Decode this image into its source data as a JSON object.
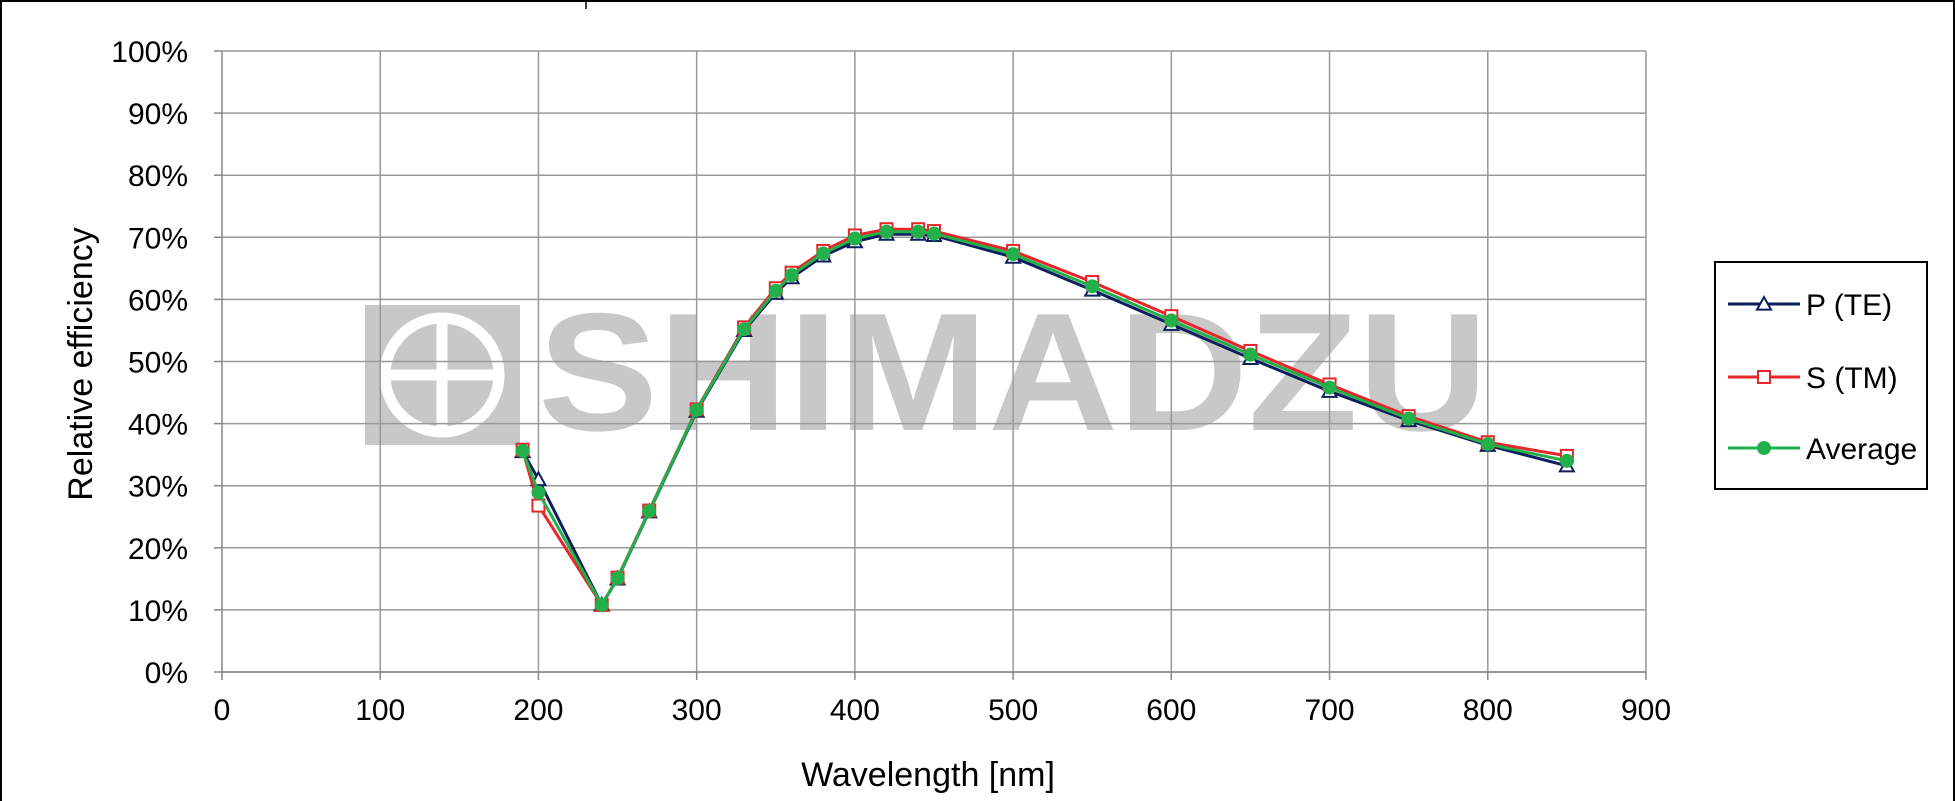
{
  "watermark": {
    "text": "SHIMADZU",
    "logo": "shimadzu-logo"
  },
  "colors": {
    "p_te": "#0d1f5c",
    "s_tm": "#e5262a",
    "average": "#22b04b",
    "grid": "#999999",
    "watermark": "#c8c8c8"
  },
  "chart_data": {
    "type": "line",
    "xlabel": "Wavelength [nm]",
    "ylabel": "Relative efficiency",
    "xlim": [
      0,
      900
    ],
    "ylim": [
      0,
      100
    ],
    "x_ticks": [
      "0",
      "100",
      "200",
      "300",
      "400",
      "500",
      "600",
      "700",
      "800",
      "900"
    ],
    "y_ticks": [
      "0%",
      "10%",
      "20%",
      "30%",
      "40%",
      "50%",
      "60%",
      "70%",
      "80%",
      "90%",
      "100%"
    ],
    "grid": true,
    "legend_position": "right",
    "x": [
      190,
      200,
      240,
      250,
      270,
      300,
      330,
      350,
      360,
      380,
      400,
      420,
      440,
      450,
      500,
      550,
      600,
      650,
      700,
      750,
      800,
      850
    ],
    "series": [
      {
        "name": "P (TE)",
        "marker": "triangle-open",
        "color": "#0d1f5c",
        "values": [
          35.5,
          31.0,
          10.8,
          15.0,
          25.8,
          42.0,
          55.0,
          61.0,
          63.5,
          67.0,
          69.3,
          70.5,
          70.5,
          70.3,
          66.8,
          61.5,
          56.0,
          50.5,
          45.2,
          40.5,
          36.5,
          33.2
        ]
      },
      {
        "name": "S (TM)",
        "marker": "square-open",
        "color": "#e5262a",
        "values": [
          35.8,
          26.8,
          10.8,
          15.2,
          26.0,
          42.3,
          55.5,
          61.8,
          64.3,
          67.8,
          70.3,
          71.3,
          71.3,
          71.0,
          67.8,
          62.8,
          57.3,
          51.7,
          46.3,
          41.2,
          37.0,
          34.8
        ]
      },
      {
        "name": "Average",
        "marker": "circle-filled",
        "color": "#22b04b",
        "values": [
          35.6,
          28.9,
          10.8,
          15.1,
          25.9,
          42.2,
          55.2,
          61.4,
          63.9,
          67.4,
          69.8,
          70.9,
          70.9,
          70.6,
          67.3,
          62.1,
          56.6,
          51.1,
          45.8,
          40.8,
          36.7,
          34.0
        ]
      }
    ]
  }
}
